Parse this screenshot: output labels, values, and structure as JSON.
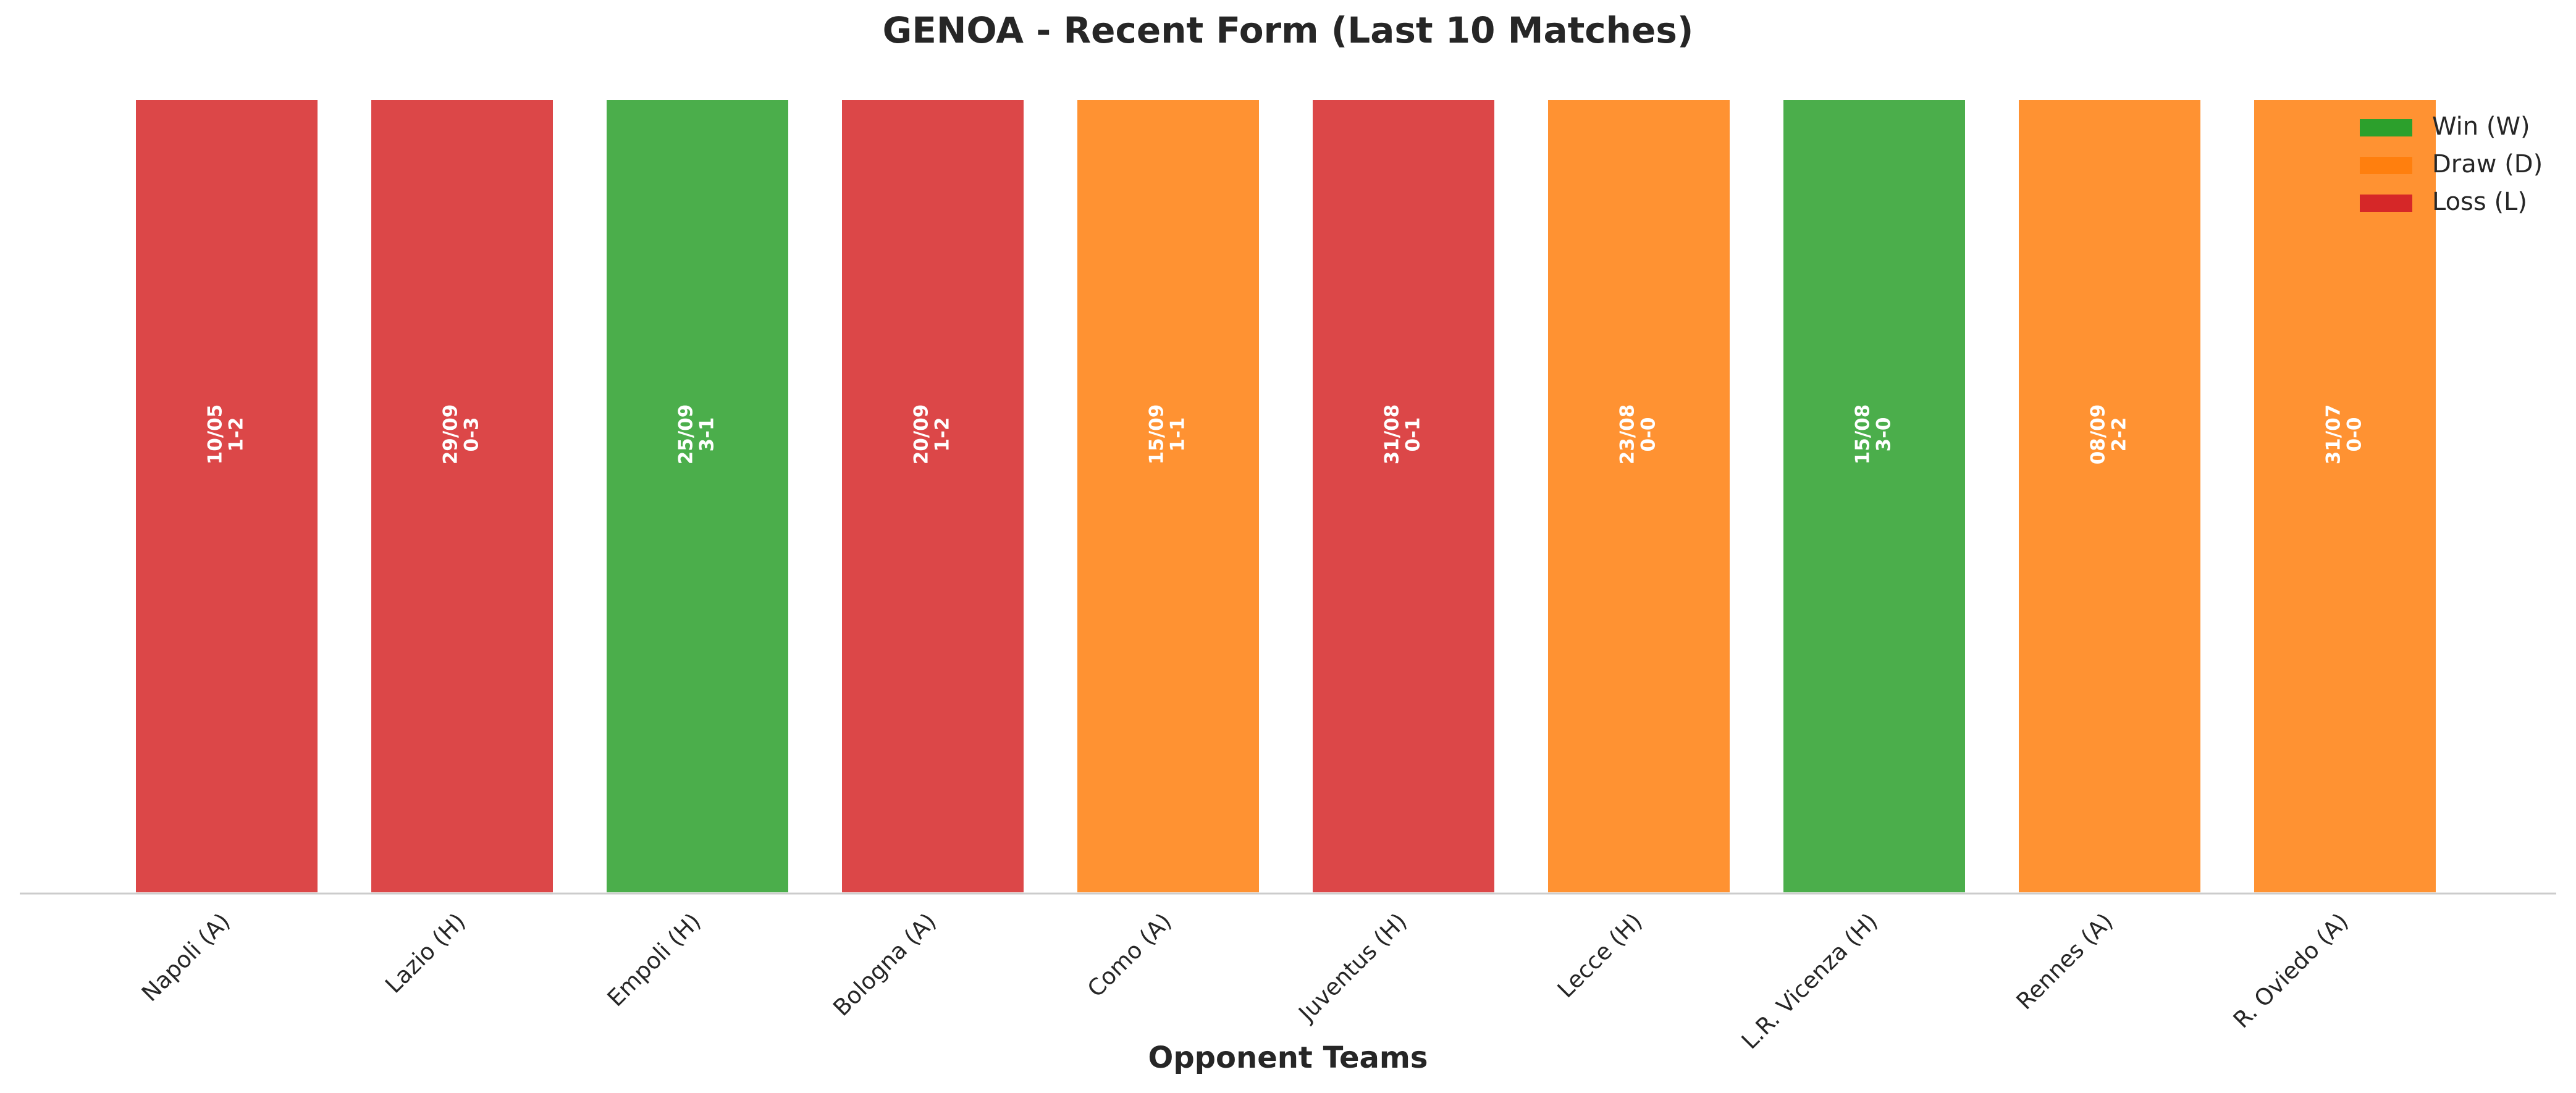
{
  "chart_data": {
    "type": "bar",
    "title": "GENOA - Recent Form (Last 10 Matches)",
    "x_label": "Opponent Teams",
    "categories": [
      "Napoli (A)",
      "Lazio (H)",
      "Empoli (H)",
      "Bologna (A)",
      "Como (A)",
      "Juventus (H)",
      "Lecce (H)",
      "L.R. Vicenza (H)",
      "Rennes (A)",
      "R. Oviedo (A)"
    ],
    "values": [
      1,
      1,
      1,
      1,
      1,
      1,
      1,
      1,
      1,
      1
    ],
    "dates": [
      "10/05",
      "29/09",
      "25/09",
      "20/09",
      "15/09",
      "31/08",
      "23/08",
      "15/08",
      "08/09",
      "31/07"
    ],
    "scores": [
      "1-2",
      "0-3",
      "3-1",
      "1-2",
      "1-1",
      "0-1",
      "0-0",
      "3-0",
      "2-2",
      "0-0"
    ],
    "colors": [
      "#d62728",
      "#d62728",
      "#2ca02c",
      "#d62728",
      "#ff7f0e",
      "#d62728",
      "#ff7f0e",
      "#2ca02c",
      "#ff7f0e",
      "#ff7f0e"
    ],
    "ylim": [
      0,
      1
    ],
    "legend": [
      {
        "name": "Win (W)",
        "color": "#2ca02c"
      },
      {
        "name": "Draw (D)",
        "color": "#ff7f0e"
      },
      {
        "name": "Loss (L)",
        "color": "#d62728"
      }
    ],
    "legend_position": "upper right"
  }
}
